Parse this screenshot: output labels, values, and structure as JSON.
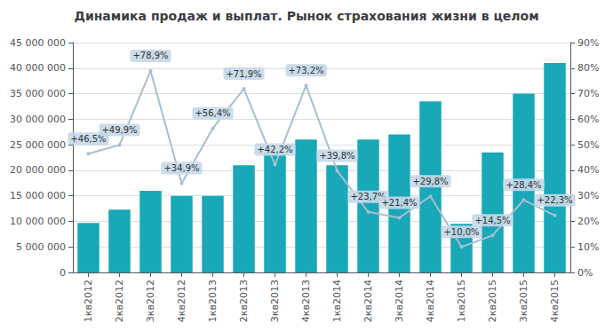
{
  "chart_data": {
    "type": "bar",
    "title": "Динамика продаж и выплат. Рынок страхования жизни в целом",
    "categories": [
      "1кв2012",
      "2кв2012",
      "3кв2012",
      "4кв2012",
      "1кв2013",
      "2кв2013",
      "3кв2013",
      "4кв2013",
      "1кв2014",
      "2кв2014",
      "3кв2014",
      "4кв2014",
      "1кв2015",
      "2кв2015",
      "3кв2015",
      "4кв2015"
    ],
    "series": [
      {
        "type": "bar",
        "color": "#18A8B8",
        "values": [
          9700000,
          12300000,
          16000000,
          15000000,
          15000000,
          21000000,
          23500000,
          26000000,
          21000000,
          26000000,
          27000000,
          33500000,
          9500000,
          23500000,
          35000000,
          41000000
        ]
      },
      {
        "type": "line",
        "axis": "y2",
        "color": "#A8BED0",
        "data_labels": true,
        "values": [
          0.465,
          0.499,
          0.789,
          0.349,
          0.564,
          0.719,
          0.422,
          0.732,
          0.398,
          0.237,
          0.214,
          0.298,
          0.1,
          0.145,
          0.284,
          0.223
        ],
        "value_labels": [
          "+46,5%",
          "+49,9%",
          "+78,9%",
          "+34,9%",
          "+56,4%",
          "+71,9%",
          "+42,2%",
          "+73,2%",
          "+39,8%",
          "+23,7%",
          "+21,4%",
          "+29,8%",
          "+10,0%",
          "+14,5%",
          "+28,4%",
          "+22,3%"
        ]
      }
    ],
    "ylim": [
      0,
      45000000
    ],
    "yticks": [
      0,
      {
        "value": 5000000,
        "label": "5 000 000"
      },
      {
        "value": 10000000,
        "label": "10 000 000"
      },
      {
        "value": 15000000,
        "label": "15 000 000"
      },
      {
        "value": 20000000,
        "label": "20 000 000"
      },
      {
        "value": 25000000,
        "label": "25 000 000"
      },
      {
        "value": 30000000,
        "label": "30 000 000"
      },
      {
        "value": 35000000,
        "label": "35 000 000"
      },
      {
        "value": 40000000,
        "label": "40 000 000"
      },
      {
        "value": 45000000,
        "label": "45 000 000"
      }
    ],
    "y2lim": [
      0,
      0.9
    ],
    "y2ticks": [
      {
        "value": 0.0,
        "label": "0%"
      },
      {
        "value": 0.1,
        "label": "10%"
      },
      {
        "value": 0.2,
        "label": "20%"
      },
      {
        "value": 0.3,
        "label": "30%"
      },
      {
        "value": 0.4,
        "label": "40%"
      },
      {
        "value": 0.5,
        "label": "50%"
      },
      {
        "value": 0.6,
        "label": "60%"
      },
      {
        "value": 0.7,
        "label": "70%"
      },
      {
        "value": 0.8,
        "label": "80%"
      },
      {
        "value": 0.9,
        "label": "90%"
      }
    ],
    "grid": true
  }
}
